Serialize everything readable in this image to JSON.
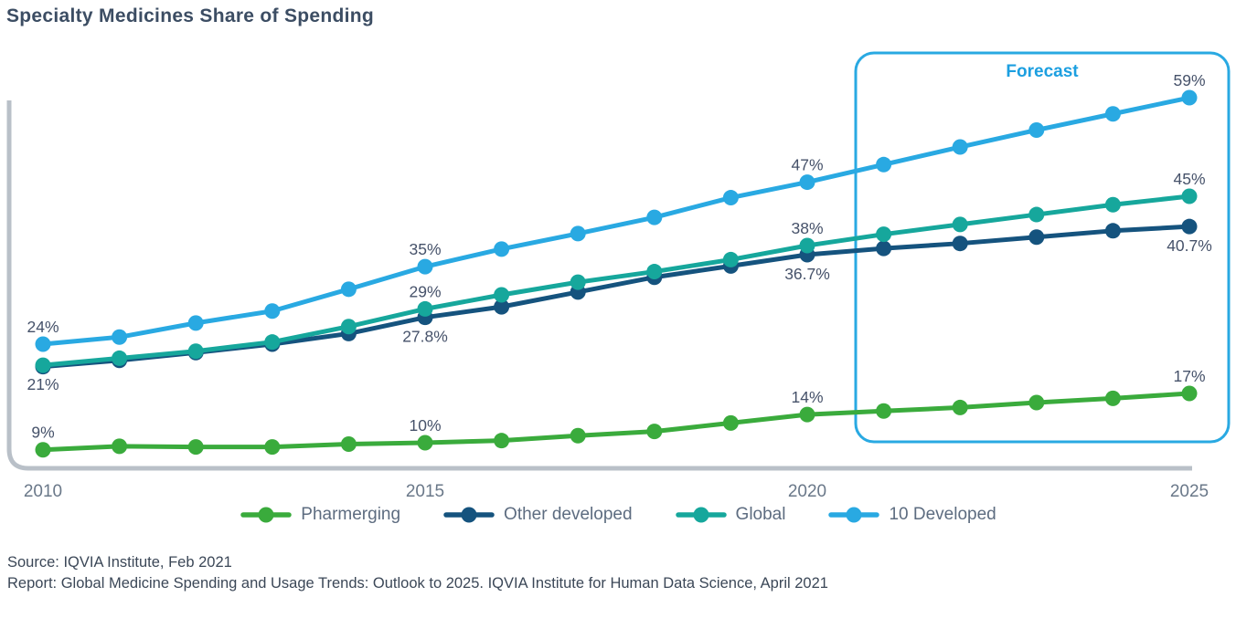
{
  "chart_data": {
    "type": "line",
    "title": "Specialty Medicines Share of Spending",
    "xlabel": "",
    "ylabel": "",
    "xlim": [
      2010,
      2025
    ],
    "grid": false,
    "legend_position": "bottom",
    "axis_color": "#B9C0C8",
    "x": [
      2010,
      2011,
      2012,
      2013,
      2014,
      2015,
      2016,
      2017,
      2018,
      2019,
      2020,
      2021,
      2022,
      2023,
      2024,
      2025
    ],
    "x_ticks": [
      {
        "year": 2010,
        "label": "2010"
      },
      {
        "year": 2015,
        "label": "2015"
      },
      {
        "year": 2020,
        "label": "2020"
      },
      {
        "year": 2025,
        "label": "2025"
      }
    ],
    "series": [
      {
        "name": "Pharmerging",
        "color": "#3AAB3C",
        "values": [
          9,
          9.5,
          9.4,
          9.4,
          9.8,
          10,
          10.3,
          11,
          11.6,
          12.8,
          14,
          14.5,
          15,
          15.7,
          16.3,
          17
        ]
      },
      {
        "name": "Other developed",
        "color": "#15537E",
        "values": [
          20.8,
          21.7,
          22.8,
          24,
          25.5,
          27.8,
          29.3,
          31.4,
          33.5,
          35.1,
          36.7,
          37.6,
          38.3,
          39.2,
          40.1,
          40.7
        ]
      },
      {
        "name": "Global",
        "color": "#16A79C",
        "values": [
          21,
          22,
          23,
          24.3,
          26.5,
          29,
          31,
          32.8,
          34.3,
          36,
          38,
          39.6,
          41,
          42.4,
          43.8,
          45
        ]
      },
      {
        "name": "10 Developed",
        "color": "#29A9E2",
        "values": [
          24,
          25,
          27,
          28.7,
          31.8,
          35,
          37.5,
          39.7,
          42,
          44.8,
          47,
          49.5,
          52,
          54.4,
          56.7,
          59
        ]
      }
    ],
    "annotations": [
      {
        "series": "10 Developed",
        "year": 2010,
        "text": "24%",
        "placement": "above"
      },
      {
        "series": "Global",
        "year": 2010,
        "text": "21%",
        "placement": "below"
      },
      {
        "series": "Pharmerging",
        "year": 2010,
        "text": "9%",
        "placement": "above"
      },
      {
        "series": "10 Developed",
        "year": 2015,
        "text": "35%",
        "placement": "above"
      },
      {
        "series": "Global",
        "year": 2015,
        "text": "29%",
        "placement": "above"
      },
      {
        "series": "Other developed",
        "year": 2015,
        "text": "27.8%",
        "placement": "below"
      },
      {
        "series": "Pharmerging",
        "year": 2015,
        "text": "10%",
        "placement": "above"
      },
      {
        "series": "10 Developed",
        "year": 2020,
        "text": "47%",
        "placement": "above"
      },
      {
        "series": "Global",
        "year": 2020,
        "text": "38%",
        "placement": "above"
      },
      {
        "series": "Other developed",
        "year": 2020,
        "text": "36.7%",
        "placement": "below"
      },
      {
        "series": "Pharmerging",
        "year": 2020,
        "text": "14%",
        "placement": "above"
      },
      {
        "series": "10 Developed",
        "year": 2025,
        "text": "59%",
        "placement": "above"
      },
      {
        "series": "Global",
        "year": 2025,
        "text": "45%",
        "placement": "above"
      },
      {
        "series": "Other developed",
        "year": 2025,
        "text": "40.7%",
        "placement": "below"
      },
      {
        "series": "Pharmerging",
        "year": 2025,
        "text": "17%",
        "placement": "above"
      }
    ],
    "forecast": {
      "label": "Forecast",
      "from_year": 2021,
      "to_year": 2025,
      "box_color": "#29A9E2",
      "label_color": "#1C9FE0"
    }
  },
  "footer": {
    "source_line": "Source: IQVIA Institute, Feb 2021",
    "report_line": "Report: Global Medicine Spending and Usage Trends: Outlook to 2025. IQVIA Institute for Human Data Science, April 2021"
  }
}
